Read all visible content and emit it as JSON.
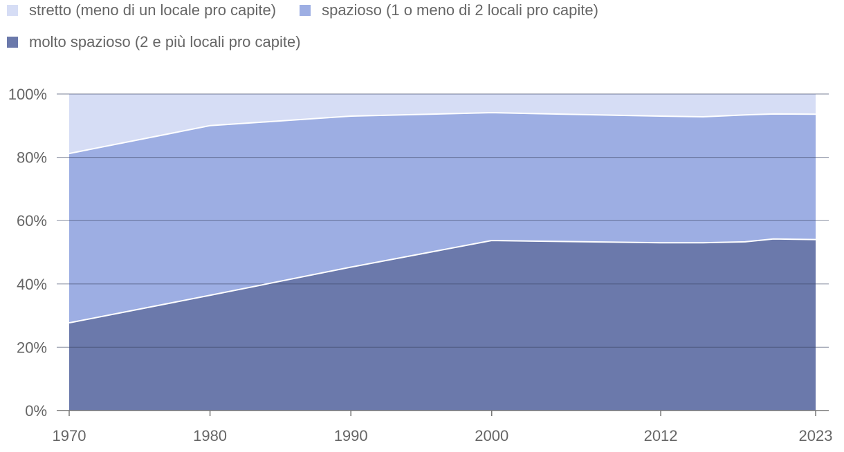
{
  "chart_data": {
    "type": "area",
    "stacked": true,
    "x": [
      1970,
      1980,
      1990,
      2000,
      2012,
      2015,
      2018,
      2020,
      2023
    ],
    "x_tick_labels": [
      "1970",
      "1980",
      "1990",
      "2000",
      "2012",
      "2023"
    ],
    "y_tick_labels": [
      "0%",
      "20%",
      "40%",
      "60%",
      "80%",
      "100%"
    ],
    "ylim": [
      0,
      100
    ],
    "grid": true,
    "legend_position": "top-left",
    "series": [
      {
        "name": "molto spazioso (2 e più locali pro capite)",
        "color": "#6b79ab",
        "values": [
          27.7,
          36.4,
          45.3,
          53.7,
          53.0,
          53.0,
          53.3,
          54.2,
          54.0
        ]
      },
      {
        "name": "spazioso (1 o meno di 2 locali pro capite)",
        "color": "#9daee3",
        "values": [
          53.5,
          53.6,
          47.7,
          40.4,
          40.0,
          39.8,
          40.1,
          39.5,
          39.6
        ]
      },
      {
        "name": "stretto (meno di un locale pro capite)",
        "color": "#d6ddf5",
        "values": [
          18.8,
          10.0,
          7.0,
          5.9,
          7.0,
          7.2,
          6.6,
          6.3,
          6.4
        ]
      }
    ]
  }
}
